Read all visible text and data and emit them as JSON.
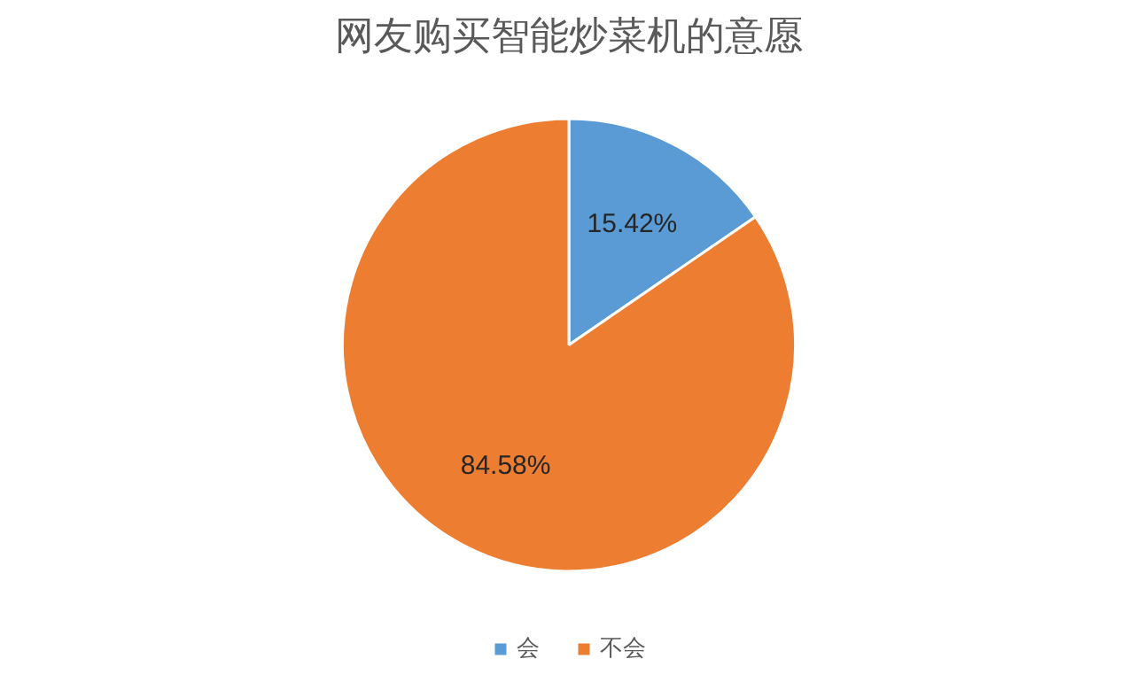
{
  "chart_data": {
    "type": "pie",
    "title": "网友购买智能炒菜机的意愿",
    "categories": [
      "会",
      "不会"
    ],
    "values": [
      15.42,
      84.58
    ],
    "colors": [
      "#5b9bd5",
      "#ed7d31"
    ],
    "value_labels": [
      "15.42%",
      "84.58%"
    ],
    "legend": "bottom"
  }
}
